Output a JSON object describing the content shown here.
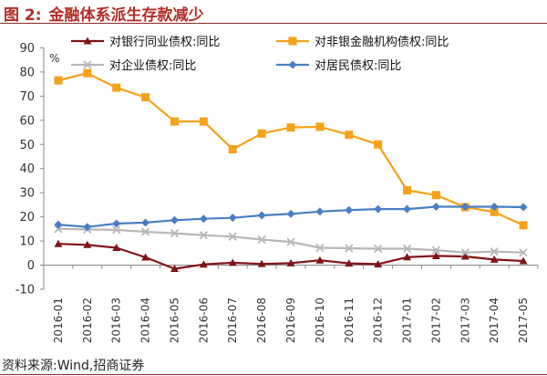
{
  "figure": {
    "label": "图 2:",
    "title": "金融体系派生存款减少",
    "source": "资料来源:Wind,招商证券"
  },
  "chart_data": {
    "type": "line",
    "unit_label": "%",
    "categories": [
      "2016-01",
      "2016-02",
      "2016-03",
      "2016-04",
      "2016-05",
      "2016-06",
      "2016-07",
      "2016-08",
      "2016-09",
      "2016-10",
      "2016-11",
      "2016-12",
      "2017-01",
      "2017-02",
      "2017-03",
      "2017-04",
      "2017-05"
    ],
    "ylim": [
      -10,
      90
    ],
    "yticks": [
      -10,
      0,
      10,
      20,
      30,
      40,
      50,
      60,
      70,
      80,
      90
    ],
    "grid": false,
    "legend_position": "top",
    "series": [
      {
        "name": "对银行同业债权:同比",
        "color": "#7f1416",
        "marker": "triangle",
        "values": [
          8.8,
          8.4,
          7.2,
          3.2,
          -1.5,
          0.3,
          1.0,
          0.5,
          0.8,
          2.0,
          0.7,
          0.4,
          3.3,
          3.8,
          3.6,
          2.3,
          1.7
        ]
      },
      {
        "name": "对非银金融机构债权:同比",
        "color": "#f5a11a",
        "marker": "square",
        "values": [
          76.5,
          79.5,
          73.5,
          69.5,
          59.5,
          59.5,
          48.0,
          54.5,
          57.0,
          57.3,
          54.0,
          50.0,
          31.0,
          29.0,
          24.0,
          22.0,
          16.5
        ]
      },
      {
        "name": "对企业债权:同比",
        "color": "#b7b7b7",
        "marker": "x",
        "values": [
          15.0,
          14.8,
          14.6,
          13.8,
          13.2,
          12.4,
          11.8,
          10.6,
          9.6,
          7.2,
          7.0,
          6.8,
          6.8,
          6.2,
          5.2,
          5.6,
          5.2
        ]
      },
      {
        "name": "对居民债权:同比",
        "color": "#4a7ec4",
        "marker": "diamond",
        "values": [
          16.8,
          15.8,
          17.2,
          17.6,
          18.6,
          19.2,
          19.6,
          20.6,
          21.2,
          22.2,
          22.8,
          23.2,
          23.2,
          24.2,
          24.2,
          24.2,
          24.0
        ]
      }
    ]
  }
}
